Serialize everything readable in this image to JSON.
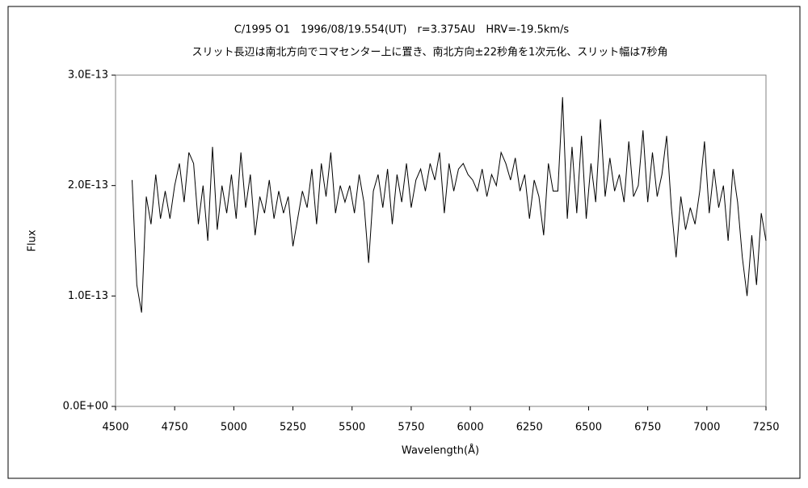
{
  "chart_data": {
    "type": "line",
    "title": "C/1995 O1　1996/08/19.554(UT)　r=3.375AU　HRV=-19.5km/s",
    "subtitle": "スリット長辺は南北方向でコマセンター上に置き、南北方向±22秒角を1次元化、スリット幅は7秒角",
    "x_label": "Wavelength(Å)",
    "y_label": "Flux",
    "color": "#000000",
    "xlim": [
      4500,
      7250
    ],
    "xticks": [
      4500,
      4750,
      5000,
      5250,
      5500,
      5750,
      6000,
      6250,
      6500,
      6750,
      7000,
      7250
    ],
    "ylim": [
      0,
      3e-13
    ],
    "yticks": [
      {
        "value": 0,
        "label": "0.0E+00"
      },
      {
        "value": 1e-13,
        "label": "1.0E-13"
      },
      {
        "value": 2e-13,
        "label": "2.0E-13"
      },
      {
        "value": 3e-13,
        "label": "3.0E-13"
      }
    ],
    "x": [
      4570,
      4590,
      4610,
      4630,
      4650,
      4670,
      4690,
      4710,
      4730,
      4750,
      4770,
      4790,
      4810,
      4830,
      4850,
      4870,
      4890,
      4910,
      4930,
      4950,
      4970,
      4990,
      5010,
      5030,
      5050,
      5070,
      5090,
      5110,
      5130,
      5150,
      5170,
      5190,
      5210,
      5230,
      5250,
      5270,
      5290,
      5310,
      5330,
      5350,
      5370,
      5390,
      5410,
      5430,
      5450,
      5470,
      5490,
      5510,
      5530,
      5550,
      5570,
      5590,
      5610,
      5630,
      5650,
      5670,
      5690,
      5710,
      5730,
      5750,
      5770,
      5790,
      5810,
      5830,
      5850,
      5870,
      5890,
      5910,
      5930,
      5950,
      5970,
      5990,
      6010,
      6030,
      6050,
      6070,
      6090,
      6110,
      6130,
      6150,
      6170,
      6190,
      6210,
      6230,
      6250,
      6270,
      6290,
      6310,
      6330,
      6350,
      6370,
      6390,
      6410,
      6430,
      6450,
      6470,
      6490,
      6510,
      6530,
      6550,
      6570,
      6590,
      6610,
      6630,
      6650,
      6670,
      6690,
      6710,
      6730,
      6750,
      6770,
      6790,
      6810,
      6830,
      6850,
      6870,
      6890,
      6910,
      6930,
      6950,
      6970,
      6990,
      7010,
      7030,
      7050,
      7070,
      7090,
      7110,
      7130,
      7150,
      7170,
      7190,
      7210,
      7230,
      7250
    ],
    "values": [
      2.05e-13,
      1.1e-13,
      8.5e-14,
      1.9e-13,
      1.65e-13,
      2.1e-13,
      1.7e-13,
      1.95e-13,
      1.7e-13,
      2e-13,
      2.2e-13,
      1.85e-13,
      2.3e-13,
      2.2e-13,
      1.65e-13,
      2e-13,
      1.5e-13,
      2.35e-13,
      1.6e-13,
      2e-13,
      1.75e-13,
      2.1e-13,
      1.7e-13,
      2.3e-13,
      1.8e-13,
      2.1e-13,
      1.55e-13,
      1.9e-13,
      1.75e-13,
      2.05e-13,
      1.7e-13,
      1.95e-13,
      1.75e-13,
      1.9e-13,
      1.45e-13,
      1.7e-13,
      1.95e-13,
      1.8e-13,
      2.15e-13,
      1.65e-13,
      2.2e-13,
      1.9e-13,
      2.3e-13,
      1.75e-13,
      2e-13,
      1.85e-13,
      2e-13,
      1.75e-13,
      2.1e-13,
      1.85e-13,
      1.3e-13,
      1.95e-13,
      2.1e-13,
      1.8e-13,
      2.15e-13,
      1.65e-13,
      2.1e-13,
      1.85e-13,
      2.2e-13,
      1.8e-13,
      2.05e-13,
      2.15e-13,
      1.95e-13,
      2.2e-13,
      2.05e-13,
      2.3e-13,
      1.75e-13,
      2.2e-13,
      1.95e-13,
      2.15e-13,
      2.2e-13,
      2.1e-13,
      2.05e-13,
      1.95e-13,
      2.15e-13,
      1.9e-13,
      2.1e-13,
      2e-13,
      2.3e-13,
      2.2e-13,
      2.05e-13,
      2.25e-13,
      1.95e-13,
      2.1e-13,
      1.7e-13,
      2.05e-13,
      1.9e-13,
      1.55e-13,
      2.2e-13,
      1.95e-13,
      1.95e-13,
      2.8e-13,
      1.7e-13,
      2.35e-13,
      1.75e-13,
      2.45e-13,
      1.7e-13,
      2.2e-13,
      1.85e-13,
      2.6e-13,
      1.9e-13,
      2.25e-13,
      1.95e-13,
      2.1e-13,
      1.85e-13,
      2.4e-13,
      1.9e-13,
      2e-13,
      2.5e-13,
      1.85e-13,
      2.3e-13,
      1.9e-13,
      2.1e-13,
      2.45e-13,
      1.8e-13,
      1.35e-13,
      1.9e-13,
      1.6e-13,
      1.8e-13,
      1.65e-13,
      1.95e-13,
      2.4e-13,
      1.75e-13,
      2.15e-13,
      1.8e-13,
      2e-13,
      1.5e-13,
      2.15e-13,
      1.85e-13,
      1.35e-13,
      1e-13,
      1.55e-13,
      1.1e-13,
      1.75e-13,
      1.5e-13
    ]
  }
}
